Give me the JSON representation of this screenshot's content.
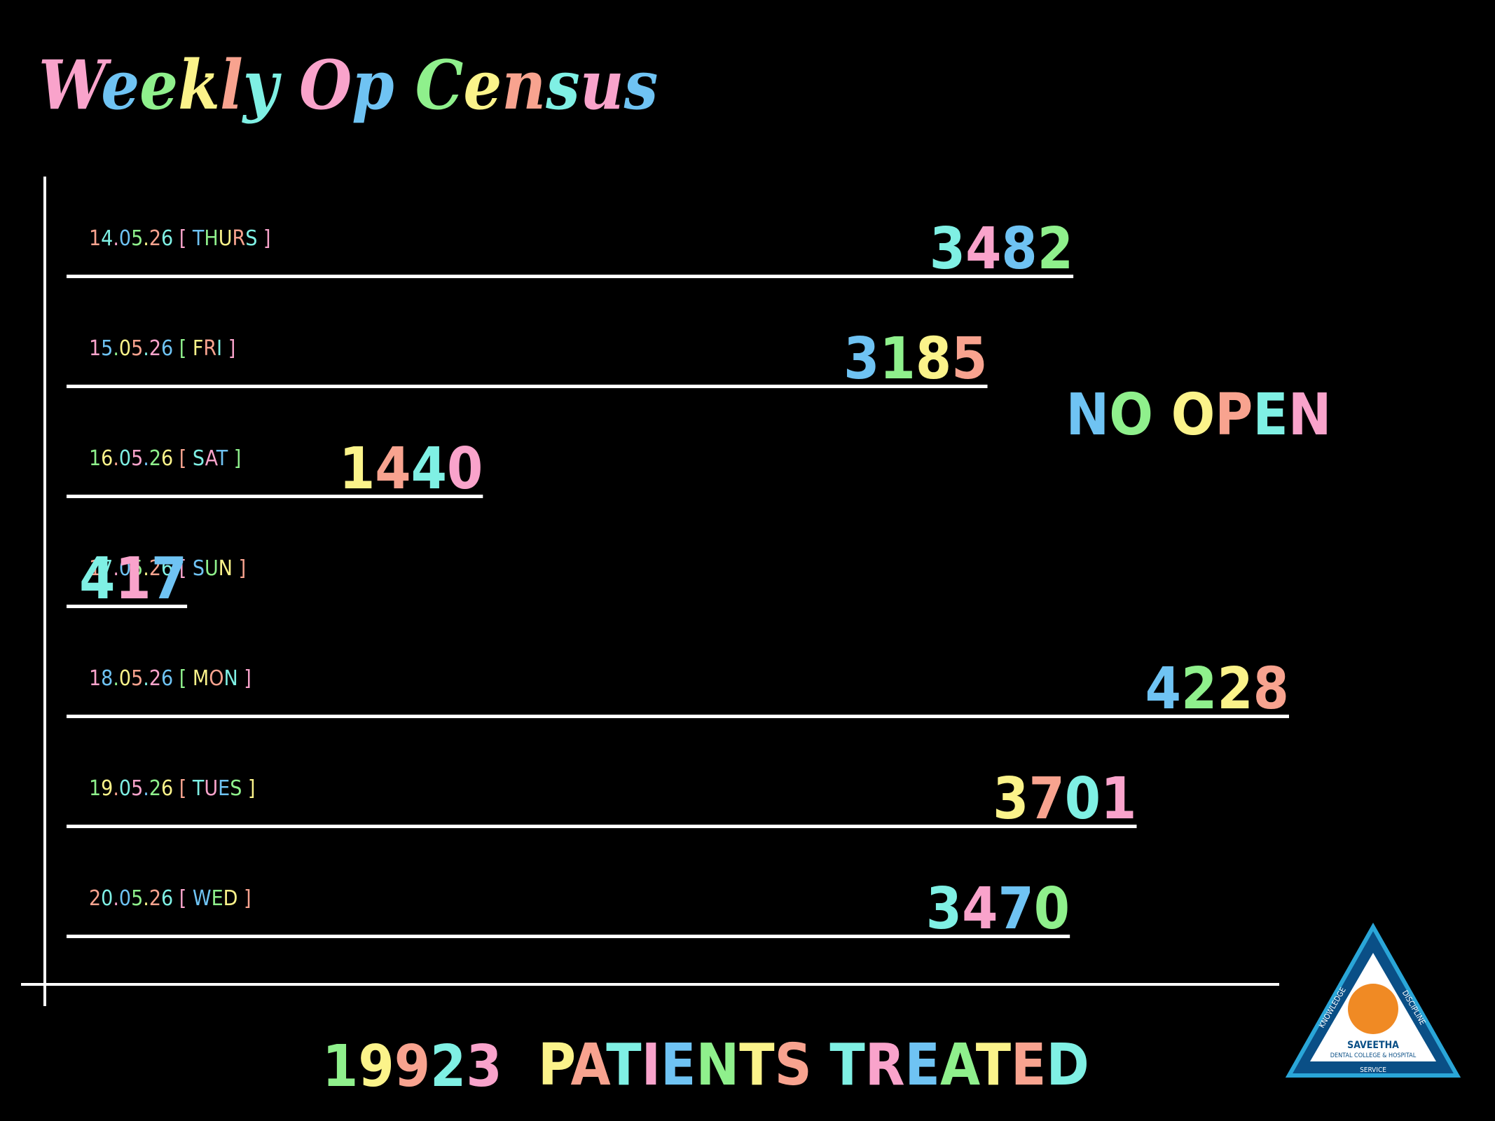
{
  "chart_data": {
    "type": "bar",
    "orientation": "horizontal",
    "title": "Weekly Op Census",
    "categories": [
      "14.05.26 [ THURS ]",
      "15.05.26 [ FRI ]",
      "16.05.26 [ SAT ]",
      "17.05.26 [ SUN ]",
      "18.05.26 [ MON ]",
      "19.05.26 [ TUES ]",
      "20.05.26 [ WED ]"
    ],
    "values": [
      3482,
      3185,
      1440,
      417,
      4228,
      3701,
      3470
    ],
    "color": "#ffffff",
    "label_colors": [
      "#f9a3cb",
      "#6fc3f3",
      "#8ff08c",
      "#fbf38a",
      "#f8a38f",
      "#7ff0e4"
    ],
    "annotation": "NO OPEN",
    "total": 19923,
    "total_label": "PATIENTS TREATED"
  },
  "logo": {
    "left": "KNOWLEDGE",
    "right": "DISCIPLINE",
    "name": "SAVEETHA",
    "subtitle": "DENTAL COLLEGE & HOSPITAL",
    "bottom": "SERVICE"
  }
}
